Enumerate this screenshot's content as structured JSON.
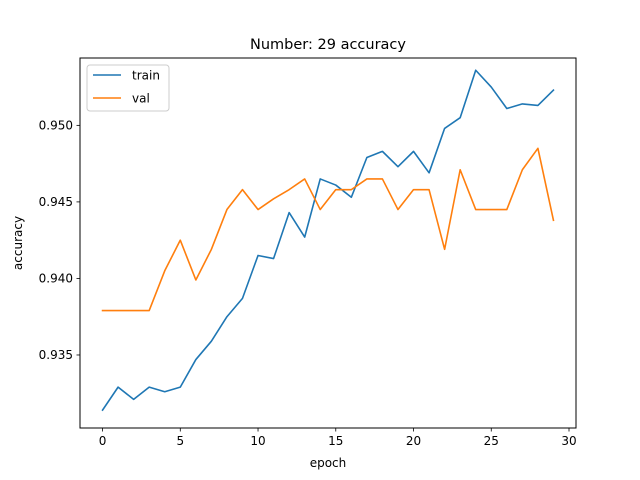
{
  "chart_data": {
    "type": "line",
    "title": "Number: 29 accuracy",
    "xlabel": "epoch",
    "ylabel": "accuracy",
    "xlim": [
      -1.45,
      30.45
    ],
    "ylim": [
      0.93023,
      0.9544
    ],
    "xticks": [
      0,
      5,
      10,
      15,
      20,
      25,
      30
    ],
    "xtick_labels": [
      "0",
      "5",
      "10",
      "15",
      "20",
      "25",
      "30"
    ],
    "yticks": [
      0.935,
      0.94,
      0.945,
      0.95
    ],
    "ytick_labels": [
      "0.935",
      "0.940",
      "0.945",
      "0.950"
    ],
    "grid": false,
    "legend_position": "upper-left",
    "x": [
      0,
      1,
      2,
      3,
      4,
      5,
      6,
      7,
      8,
      9,
      10,
      11,
      12,
      13,
      14,
      15,
      16,
      17,
      18,
      19,
      20,
      21,
      22,
      23,
      24,
      25,
      26,
      27,
      28,
      29
    ],
    "series": [
      {
        "name": "train",
        "color": "#1f77b4",
        "values": [
          0.9314,
          0.9329,
          0.9321,
          0.9329,
          0.9326,
          0.9329,
          0.9347,
          0.9359,
          0.9375,
          0.9387,
          0.9415,
          0.9413,
          0.9443,
          0.9427,
          0.9465,
          0.9461,
          0.9453,
          0.9479,
          0.9483,
          0.9473,
          0.9483,
          0.9469,
          0.9498,
          0.9505,
          0.9536,
          0.9525,
          0.9511,
          0.9514,
          0.9513,
          0.9523
        ]
      },
      {
        "name": "val",
        "color": "#ff7f0e",
        "values": [
          0.9379,
          0.9379,
          0.9379,
          0.9379,
          0.9405,
          0.9425,
          0.9399,
          0.9419,
          0.9445,
          0.9458,
          0.9445,
          0.9452,
          0.9458,
          0.9465,
          0.9445,
          0.9458,
          0.9458,
          0.9465,
          0.9465,
          0.9445,
          0.9458,
          0.9458,
          0.9419,
          0.9471,
          0.9445,
          0.9445,
          0.9445,
          0.9471,
          0.9485,
          0.9438
        ]
      }
    ]
  }
}
